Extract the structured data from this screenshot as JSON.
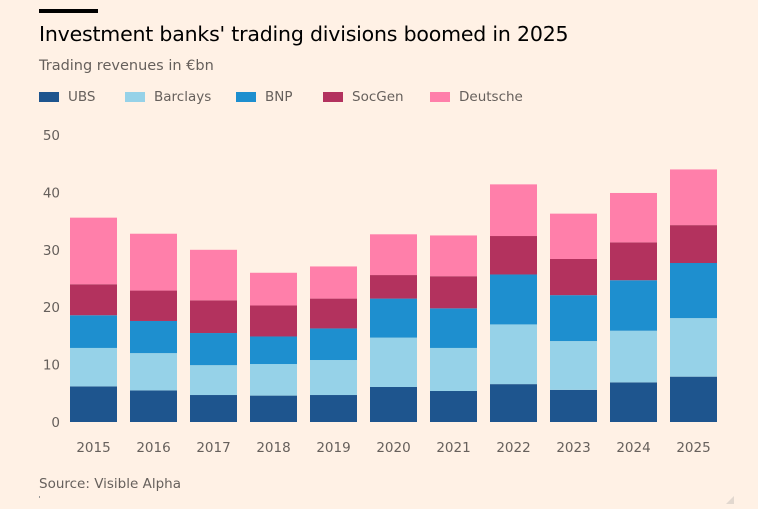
{
  "header": {
    "title": "Investment banks' trading divisions boomed in 2025",
    "subtitle": "Trading revenues in €bn"
  },
  "footer": {
    "source": "Source: Visible Alpha"
  },
  "chart_data": {
    "type": "bar",
    "stacked": true,
    "title": "Investment banks' trading divisions boomed in 2025",
    "subtitle": "Trading revenues in €bn",
    "xlabel": "",
    "ylabel": "",
    "ylim": [
      0,
      50
    ],
    "yticks": [
      0,
      10,
      20,
      30,
      40,
      50
    ],
    "grid": false,
    "legend_position": "top-left",
    "categories": [
      "2015",
      "2016",
      "2017",
      "2018",
      "2019",
      "2020",
      "2021",
      "2022",
      "2023",
      "2024",
      "2025"
    ],
    "series": [
      {
        "name": "UBS",
        "color": "#1E558E",
        "values": [
          6.2,
          5.5,
          4.7,
          4.6,
          4.7,
          6.1,
          5.4,
          6.6,
          5.6,
          6.9,
          7.9
        ]
      },
      {
        "name": "Barclays",
        "color": "#96D2E8",
        "values": [
          6.7,
          6.5,
          5.2,
          5.5,
          6.1,
          8.6,
          7.5,
          10.4,
          8.5,
          9.0,
          10.2
        ]
      },
      {
        "name": "BNP",
        "color": "#1E8FCF",
        "values": [
          5.7,
          5.6,
          5.6,
          4.8,
          5.5,
          6.8,
          6.9,
          8.7,
          8.0,
          8.8,
          9.6
        ]
      },
      {
        "name": "SocGen",
        "color": "#B3325E",
        "values": [
          5.4,
          5.3,
          5.7,
          5.4,
          5.2,
          4.1,
          5.6,
          6.7,
          6.3,
          6.6,
          6.6
        ]
      },
      {
        "name": "Deutsche",
        "color": "#FF7FAA",
        "values": [
          11.6,
          9.9,
          8.8,
          5.7,
          5.6,
          7.1,
          7.1,
          9.0,
          7.9,
          8.6,
          9.7
        ]
      }
    ],
    "source": "Source: Visible Alpha"
  }
}
